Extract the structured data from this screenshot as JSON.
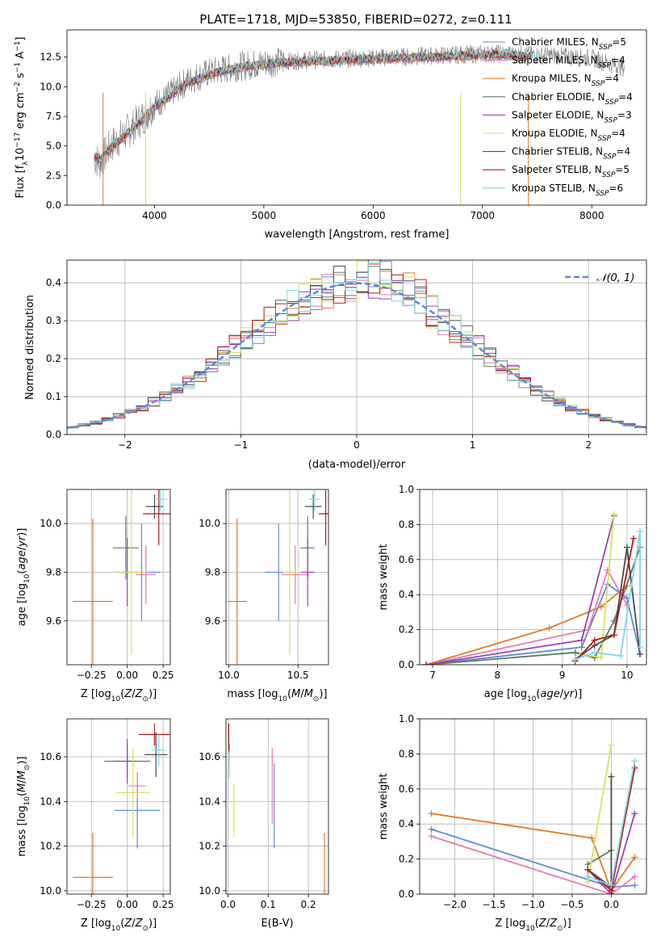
{
  "figure": {
    "title": "PLATE=1718, MJD=53850, FIBERID=0272, z=0.111"
  },
  "legend_series": [
    {
      "name": "Chabrier MILES",
      "nssp": "5",
      "color": "#5b8bd6"
    },
    {
      "name": "Salpeter MILES",
      "nssp": "4",
      "color": "#e37ab5"
    },
    {
      "name": "Kroupa MILES",
      "nssp": "4",
      "color": "#e07b26"
    },
    {
      "name": "Chabrier ELODIE",
      "nssp": "4",
      "color": "#5a7d5a"
    },
    {
      "name": "Salpeter ELODIE",
      "nssp": "3",
      "color": "#9c3fb5"
    },
    {
      "name": "Kroupa ELODIE",
      "nssp": "4",
      "color": "#d6e35a"
    },
    {
      "name": "Chabrier STELIB",
      "nssp": "4",
      "color": "#4a4a4a"
    },
    {
      "name": "Salpeter STELIB",
      "nssp": "5",
      "color": "#b01a1a"
    },
    {
      "name": "Kroupa STELIB",
      "nssp": "6",
      "color": "#7fd6e6"
    }
  ],
  "chart_data": [
    {
      "id": "spectrum",
      "type": "line",
      "xlabel": "wavelength [Angstrom, rest frame]",
      "ylabel": "Flux [f_λ10^-17 erg cm^-2 s^-1 A^-1]",
      "xlim": [
        3200,
        8500
      ],
      "ylim": [
        0,
        14.8
      ],
      "xticks": [
        4000,
        5000,
        6000,
        7000,
        8000
      ],
      "yticks": [
        0.0,
        2.5,
        5.0,
        7.5,
        10.0,
        12.5
      ],
      "series": [
        {
          "name": "data",
          "color": "#808080",
          "x": [
            3450,
            3500,
            3600,
            3700,
            3800,
            3900,
            4000,
            4100,
            4200,
            4300,
            4500,
            4700,
            5000,
            5300,
            5600,
            5900,
            6200,
            6500,
            6800,
            7100,
            7400,
            7700,
            8000,
            8300
          ],
          "values": [
            4.0,
            3.6,
            5.0,
            5.8,
            6.6,
            7.5,
            8.5,
            9.0,
            9.8,
            10.5,
            11.2,
            11.6,
            12.0,
            12.2,
            12.3,
            12.4,
            12.5,
            12.6,
            12.7,
            12.8,
            12.7,
            12.6,
            12.4,
            11.6
          ]
        },
        {
          "name": "model",
          "color": "#7fd6e6",
          "x": [
            3450,
            3500,
            3600,
            3700,
            3800,
            3900,
            4000,
            4100,
            4200,
            4300,
            4500,
            4700,
            5000,
            5300,
            5600,
            5900,
            6200,
            6500,
            6800,
            7100,
            7400,
            7700,
            8000,
            8300
          ],
          "values": [
            4.1,
            3.8,
            4.8,
            5.6,
            6.5,
            7.3,
            8.3,
            8.9,
            9.6,
            10.3,
            11.0,
            11.5,
            11.9,
            12.1,
            12.2,
            12.3,
            12.4,
            12.5,
            12.6,
            12.7,
            12.6,
            12.5,
            12.3,
            11.8
          ]
        }
      ]
    },
    {
      "id": "residuals",
      "type": "line",
      "xlabel": "(data-model)/error",
      "ylabel": "Normed distribution",
      "xlim": [
        -2.5,
        2.5
      ],
      "ylim": [
        0,
        0.46
      ],
      "xticks": [
        -2,
        -1,
        0,
        1,
        2
      ],
      "yticks": [
        0.0,
        0.1,
        0.2,
        0.3,
        0.4
      ],
      "legend": "𝒩(0, 1)",
      "legend_position": "top-right"
    },
    {
      "id": "age-vs-Z",
      "type": "scatter",
      "xlabel": "Z [log10(Z/Z⊙)]",
      "ylabel": "age [log10(age/yr)]",
      "xlim": [
        -0.42,
        0.3
      ],
      "ylim": [
        9.42,
        10.14
      ],
      "xticks": [
        -0.25,
        0.0,
        0.25
      ],
      "xticklabels": [
        "−0.25",
        "0.00",
        "0.25"
      ],
      "yticks": [
        9.6,
        9.8,
        10.0
      ],
      "points": [
        {
          "name": "Chabrier MILES",
          "x": 0.1,
          "y": 9.8,
          "xerr": 0.13,
          "yerr": 0.2
        },
        {
          "name": "Salpeter MILES",
          "x": 0.13,
          "y": 9.79,
          "xerr": 0.07,
          "yerr": 0.12
        },
        {
          "name": "Kroupa MILES",
          "x": -0.24,
          "y": 9.68,
          "xerr": 0.14,
          "yerr": 0.34
        },
        {
          "name": "Chabrier ELODIE",
          "x": -0.01,
          "y": 9.9,
          "xerr": 0.09,
          "yerr": 0.13
        },
        {
          "name": "Salpeter ELODIE",
          "x": 0.0,
          "y": 9.8,
          "xerr": 0.07,
          "yerr": 0.14
        },
        {
          "name": "Kroupa ELODIE",
          "x": 0.03,
          "y": 9.8,
          "xerr": 0.1,
          "yerr": 0.34
        },
        {
          "name": "Chabrier STELIB",
          "x": 0.19,
          "y": 10.07,
          "xerr": 0.06,
          "yerr": 0.05
        },
        {
          "name": "Salpeter STELIB",
          "x": 0.22,
          "y": 10.04,
          "xerr": 0.11,
          "yerr": 0.13
        },
        {
          "name": "Kroupa STELIB",
          "x": 0.23,
          "y": 10.1,
          "xerr": 0.05,
          "yerr": 0.05
        }
      ]
    },
    {
      "id": "age-vs-mass",
      "type": "scatter",
      "xlabel": "mass [log10(M/M⊙)]",
      "ylabel": "",
      "xlim": [
        9.98,
        10.72
      ],
      "ylim": [
        9.42,
        10.14
      ],
      "xticks": [
        10.0,
        10.5
      ],
      "xticklabels": [
        "10.0",
        "10.5"
      ],
      "yticks": [
        9.6,
        9.8,
        10.0
      ],
      "points": [
        {
          "name": "Chabrier MILES",
          "x": 10.36,
          "y": 9.8,
          "xerr": 0.1,
          "yerr": 0.2
        },
        {
          "name": "Salpeter MILES",
          "x": 10.48,
          "y": 9.79,
          "xerr": 0.1,
          "yerr": 0.12
        },
        {
          "name": "Kroupa MILES",
          "x": 10.06,
          "y": 9.68,
          "xerr": 0.07,
          "yerr": 0.34
        },
        {
          "name": "Chabrier ELODIE",
          "x": 10.57,
          "y": 9.9,
          "xerr": 0.05,
          "yerr": 0.13
        },
        {
          "name": "Salpeter ELODIE",
          "x": 10.57,
          "y": 9.8,
          "xerr": 0.05,
          "yerr": 0.14
        },
        {
          "name": "Kroupa ELODIE",
          "x": 10.44,
          "y": 9.8,
          "xerr": 0.05,
          "yerr": 0.34
        },
        {
          "name": "Chabrier STELIB",
          "x": 10.61,
          "y": 10.07,
          "xerr": 0.06,
          "yerr": 0.05
        },
        {
          "name": "Salpeter STELIB",
          "x": 10.7,
          "y": 10.04,
          "xerr": 0.05,
          "yerr": 0.13
        },
        {
          "name": "Kroupa STELIB",
          "x": 10.62,
          "y": 10.1,
          "xerr": 0.04,
          "yerr": 0.05
        }
      ]
    },
    {
      "id": "massweight-vs-age",
      "type": "line",
      "xlabel": "age [log10(age/yr)]",
      "ylabel": "mass weight",
      "xlim": [
        6.8,
        10.3
      ],
      "ylim": [
        0,
        1.0
      ],
      "xticks": [
        7,
        8,
        9,
        10
      ],
      "yticks": [
        0.0,
        0.2,
        0.4,
        0.6,
        0.8,
        1.0
      ],
      "series": [
        {
          "name": "Chabrier MILES",
          "x": [
            6.9,
            9.3,
            9.7,
            10.0,
            10.2
          ],
          "values": [
            0.0,
            0.1,
            0.46,
            0.38,
            0.06
          ]
        },
        {
          "name": "Salpeter MILES",
          "x": [
            6.9,
            9.4,
            9.7,
            10.0
          ],
          "values": [
            0.0,
            0.2,
            0.54,
            0.34
          ]
        },
        {
          "name": "Kroupa MILES",
          "x": [
            6.9,
            8.8,
            9.6,
            10.0
          ],
          "values": [
            0.0,
            0.21,
            0.33,
            0.45
          ]
        },
        {
          "name": "Chabrier ELODIE",
          "x": [
            6.9,
            9.2,
            9.5,
            9.8,
            10.2
          ],
          "values": [
            0.0,
            0.07,
            0.04,
            0.25,
            0.67
          ]
        },
        {
          "name": "Salpeter ELODIE",
          "x": [
            6.9,
            9.3,
            9.8
          ],
          "values": [
            0.0,
            0.14,
            0.85
          ]
        },
        {
          "name": "Kroupa ELODIE",
          "x": [
            9.3,
            9.6,
            9.8
          ],
          "values": [
            0.06,
            0.04,
            0.86
          ]
        },
        {
          "name": "Chabrier STELIB",
          "x": [
            9.2,
            9.5,
            9.8,
            10.0,
            10.2
          ],
          "values": [
            0.03,
            0.11,
            0.17,
            0.67,
            0.06
          ]
        },
        {
          "name": "Salpeter STELIB",
          "x": [
            9.2,
            9.5,
            9.8,
            10.1
          ],
          "values": [
            0.02,
            0.14,
            0.17,
            0.72
          ]
        },
        {
          "name": "Kroupa STELIB",
          "x": [
            9.2,
            9.5,
            9.9,
            10.2,
            10.2
          ],
          "values": [
            0.03,
            0.07,
            0.05,
            0.76,
            0.1
          ]
        }
      ]
    },
    {
      "id": "mass-vs-Z",
      "type": "scatter",
      "xlabel": "Z [log10(Z/Z⊙)]",
      "ylabel": "mass [log10(M/M⊙)]",
      "xlim": [
        -0.42,
        0.3
      ],
      "ylim": [
        9.985,
        10.77
      ],
      "xticks": [
        -0.25,
        0.0,
        0.25
      ],
      "xticklabels": [
        "−0.25",
        "0.00",
        "0.25"
      ],
      "yticks": [
        10.0,
        10.2,
        10.4,
        10.6
      ],
      "points": [
        {
          "name": "Chabrier MILES",
          "x": 0.07,
          "y": 10.36,
          "xerr": 0.16,
          "yerr": 0.17
        },
        {
          "name": "Salpeter MILES",
          "x": 0.07,
          "y": 10.47,
          "xerr": 0.06,
          "yerr": 0.06
        },
        {
          "name": "Kroupa MILES",
          "x": -0.24,
          "y": 10.06,
          "xerr": 0.14,
          "yerr": 0.2
        },
        {
          "name": "Chabrier ELODIE",
          "x": 0.0,
          "y": 10.58,
          "xerr": 0.16,
          "yerr": 0.07
        },
        {
          "name": "Salpeter ELODIE",
          "x": 0.0,
          "y": 10.58,
          "xerr": 0.07,
          "yerr": 0.1
        },
        {
          "name": "Kroupa ELODIE",
          "x": 0.04,
          "y": 10.44,
          "xerr": 0.12,
          "yerr": 0.2
        },
        {
          "name": "Chabrier STELIB",
          "x": 0.2,
          "y": 10.61,
          "xerr": 0.08,
          "yerr": 0.1
        },
        {
          "name": "Salpeter STELIB",
          "x": 0.19,
          "y": 10.7,
          "xerr": 0.11,
          "yerr": 0.05
        },
        {
          "name": "Kroupa STELIB",
          "x": 0.22,
          "y": 10.63,
          "xerr": 0.05,
          "yerr": 0.07
        }
      ]
    },
    {
      "id": "mass-vs-ebv",
      "type": "scatter",
      "xlabel": "E(B-V)",
      "ylabel": "",
      "xlim": [
        -0.005,
        0.25
      ],
      "ylim": [
        9.985,
        10.77
      ],
      "xticks": [
        0.0,
        0.1,
        0.2
      ],
      "xticklabels": [
        "0.0",
        "0.1",
        "0.2"
      ],
      "yticks": [
        10.0,
        10.2,
        10.4,
        10.6
      ],
      "points": [
        {
          "name": "Chabrier MILES",
          "x": 0.115,
          "y": 10.38,
          "xerr": 0,
          "yerr": 0.19
        },
        {
          "name": "Salpeter MILES",
          "x": 0.11,
          "y": 10.47,
          "xerr": 0,
          "yerr": 0.17
        },
        {
          "name": "Kroupa MILES",
          "x": 0.24,
          "y": 10.06,
          "xerr": 0,
          "yerr": 0.2
        },
        {
          "name": "Chabrier ELODIE",
          "x": 0.003,
          "y": 10.6,
          "xerr": 0,
          "yerr": 0.06
        },
        {
          "name": "Kroupa ELODIE",
          "x": 0.015,
          "y": 10.36,
          "xerr": 0,
          "yerr": 0.12
        },
        {
          "name": "Salpeter STELIB",
          "x": 0.002,
          "y": 10.69,
          "xerr": 0,
          "yerr": 0.06
        },
        {
          "name": "Kroupa STELIB",
          "x": 0.003,
          "y": 10.56,
          "xerr": 0,
          "yerr": 0.06
        }
      ]
    },
    {
      "id": "massweight-vs-Z",
      "type": "line",
      "xlabel": "Z [log10(Z/Z⊙)]",
      "ylabel": "mass weight",
      "xlim": [
        -2.45,
        0.45
      ],
      "ylim": [
        0,
        1.0
      ],
      "xticks": [
        -2.0,
        -1.5,
        -1.0,
        -0.5,
        0.0
      ],
      "xticklabels": [
        "−2.0",
        "−1.5",
        "−1.0",
        "−0.5",
        "0.0"
      ],
      "yticks": [
        0.0,
        0.2,
        0.4,
        0.6,
        0.8,
        1.0
      ],
      "series": [
        {
          "name": "Chabrier MILES",
          "x": [
            -2.3,
            0.0,
            0.3
          ],
          "values": [
            0.37,
            0.04,
            0.05
          ]
        },
        {
          "name": "Salpeter MILES",
          "x": [
            -2.3,
            0.0,
            0.3
          ],
          "values": [
            0.33,
            0.0,
            0.1
          ]
        },
        {
          "name": "Kroupa MILES",
          "x": [
            -2.3,
            -0.25,
            0.0,
            0.3
          ],
          "values": [
            0.46,
            0.32,
            0.02,
            0.21
          ]
        },
        {
          "name": "Chabrier ELODIE",
          "x": [
            -0.3,
            0.0
          ],
          "values": [
            0.17,
            0.25
          ]
        },
        {
          "name": "Salpeter ELODIE",
          "x": [
            -0.3,
            0.0,
            0.3
          ],
          "values": [
            0.14,
            0.0,
            0.46
          ]
        },
        {
          "name": "Kroupa ELODIE",
          "x": [
            -0.3,
            0.0
          ],
          "values": [
            0.07,
            0.85
          ]
        },
        {
          "name": "Chabrier STELIB",
          "x": [
            -0.3,
            0.0,
            0.0
          ],
          "values": [
            0.14,
            0.04,
            0.67
          ]
        },
        {
          "name": "Salpeter STELIB",
          "x": [
            -0.3,
            0.0,
            0.3
          ],
          "values": [
            0.14,
            0.02,
            0.72
          ]
        },
        {
          "name": "Kroupa STELIB",
          "x": [
            -0.3,
            0.0,
            0.3
          ],
          "values": [
            0.1,
            0.05,
            0.76
          ]
        }
      ]
    }
  ]
}
